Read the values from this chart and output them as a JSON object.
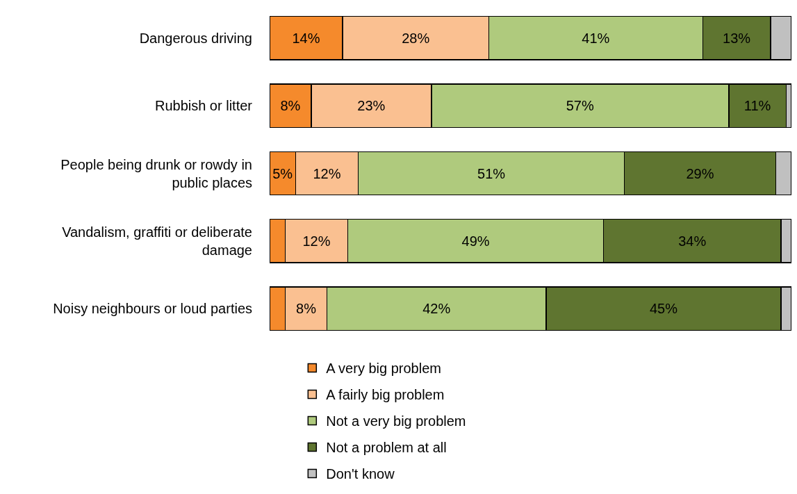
{
  "chart_data": {
    "type": "bar",
    "orientation": "horizontal",
    "stacked": true,
    "categories": [
      "Dangerous driving",
      "Rubbish or litter",
      "People being drunk or rowdy in public places",
      "Vandalism, graffiti or deliberate damage",
      "Noisy neighbours or loud parties"
    ],
    "series": [
      {
        "name": "A very big problem",
        "color": "#f58a2c",
        "values": [
          14,
          8,
          5,
          3,
          3
        ],
        "value_labels": [
          "14%",
          "8%",
          "5%",
          null,
          null
        ]
      },
      {
        "name": "A fairly big problem",
        "color": "#fac091",
        "values": [
          28,
          23,
          12,
          12,
          8
        ],
        "value_labels": [
          "28%",
          "23%",
          "12%",
          "12%",
          "8%"
        ]
      },
      {
        "name": "Not a very big problem",
        "color": "#afca7d",
        "values": [
          41,
          57,
          51,
          49,
          42
        ],
        "value_labels": [
          "41%",
          "57%",
          "51%",
          "49%",
          "42%"
        ]
      },
      {
        "name": "Not a problem at all",
        "color": "#5f7530",
        "values": [
          13,
          11,
          29,
          34,
          45
        ],
        "value_labels": [
          "13%",
          "11%",
          "29%",
          "34%",
          "45%"
        ]
      },
      {
        "name": "Don't know",
        "color": "#c0c0c0",
        "values": [
          4,
          1,
          3,
          2,
          2
        ],
        "value_labels": [
          null,
          null,
          null,
          null,
          null
        ]
      }
    ],
    "xlim": [
      0,
      100
    ],
    "tick_labels": "y",
    "legend": "bottom"
  }
}
